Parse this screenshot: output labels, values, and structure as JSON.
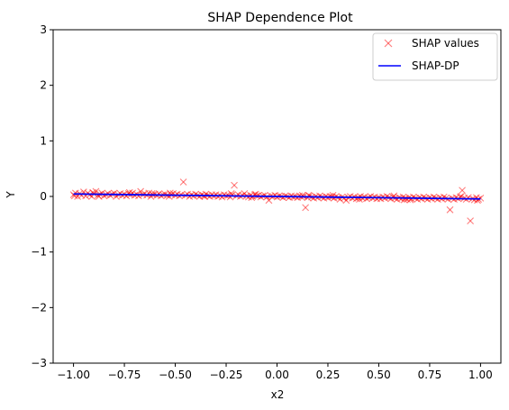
{
  "chart_data": {
    "type": "scatter",
    "title": "SHAP Dependence Plot",
    "xlabel": "x2",
    "ylabel": "Y",
    "xlim": [
      -1.1,
      1.1
    ],
    "ylim": [
      -3,
      3
    ],
    "xticks": [
      -1.0,
      -0.75,
      -0.5,
      -0.25,
      0.0,
      0.25,
      0.5,
      0.75,
      1.0
    ],
    "xtick_labels": [
      "−1.00",
      "−0.75",
      "−0.50",
      "−0.25",
      "0.00",
      "0.25",
      "0.50",
      "0.75",
      "1.00"
    ],
    "yticks": [
      -3,
      -2,
      -1,
      0,
      1,
      2,
      3
    ],
    "ytick_labels": [
      "−3",
      "−2",
      "−1",
      "0",
      "1",
      "2",
      "3"
    ],
    "grid": false,
    "legend_position": "top-right",
    "series": [
      {
        "name": "SHAP values",
        "kind": "scatter",
        "marker": "x",
        "color": "#ff0000",
        "opacity": 0.5,
        "points": [
          [
            -1.0,
            0.03
          ],
          [
            -0.99,
            0.06
          ],
          [
            -0.98,
            0.0
          ],
          [
            -0.97,
            0.05
          ],
          [
            -0.96,
            0.02
          ],
          [
            -0.95,
            0.08
          ],
          [
            -0.94,
            0.01
          ],
          [
            -0.93,
            0.06
          ],
          [
            -0.92,
            0.03
          ],
          [
            -0.91,
            0.0
          ],
          [
            -0.9,
            0.05
          ],
          [
            -0.89,
            0.09
          ],
          [
            -0.88,
            0.02
          ],
          [
            -0.87,
            0.04
          ],
          [
            -0.86,
            0.06
          ],
          [
            -0.85,
            0.01
          ],
          [
            -0.84,
            0.03
          ],
          [
            -0.83,
            0.05
          ],
          [
            -0.82,
            0.02
          ],
          [
            -0.81,
            0.04
          ],
          [
            -0.8,
            0.06
          ],
          [
            -0.79,
            0.0
          ],
          [
            -0.78,
            0.03
          ],
          [
            -0.77,
            0.05
          ],
          [
            -0.76,
            0.02
          ],
          [
            -0.75,
            0.04
          ],
          [
            -0.74,
            0.01
          ],
          [
            -0.73,
            0.05
          ],
          [
            -0.72,
            0.03
          ],
          [
            -0.71,
            0.06
          ],
          [
            -0.7,
            0.02
          ],
          [
            -0.69,
            0.04
          ],
          [
            -0.68,
            0.01
          ],
          [
            -0.67,
            0.09
          ],
          [
            -0.66,
            0.03
          ],
          [
            -0.65,
            0.05
          ],
          [
            -0.64,
            0.02
          ],
          [
            -0.63,
            0.06
          ],
          [
            -0.62,
            0.0
          ],
          [
            -0.61,
            0.03
          ],
          [
            -0.6,
            0.04
          ],
          [
            -0.59,
            0.02
          ],
          [
            -0.58,
            0.05
          ],
          [
            -0.57,
            0.01
          ],
          [
            -0.56,
            0.03
          ],
          [
            -0.55,
            0.04
          ],
          [
            -0.54,
            0.02
          ],
          [
            -0.53,
            0.0
          ],
          [
            -0.52,
            0.03
          ],
          [
            -0.51,
            0.05
          ],
          [
            -0.5,
            0.02
          ],
          [
            -0.49,
            0.04
          ],
          [
            -0.48,
            0.01
          ],
          [
            -0.47,
            0.03
          ],
          [
            -0.46,
            0.26
          ],
          [
            -0.45,
            0.02
          ],
          [
            -0.44,
            0.04
          ],
          [
            -0.43,
            0.0
          ],
          [
            -0.42,
            0.03
          ],
          [
            -0.41,
            0.01
          ],
          [
            -0.4,
            0.04
          ],
          [
            -0.39,
            0.02
          ],
          [
            -0.38,
            0.0
          ],
          [
            -0.37,
            0.03
          ],
          [
            -0.36,
            0.01
          ],
          [
            -0.35,
            0.04
          ],
          [
            -0.34,
            0.02
          ],
          [
            -0.33,
            0.0
          ],
          [
            -0.32,
            0.03
          ],
          [
            -0.31,
            0.01
          ],
          [
            -0.3,
            0.03
          ],
          [
            -0.29,
            0.0
          ],
          [
            -0.28,
            0.02
          ],
          [
            -0.27,
            -0.01
          ],
          [
            -0.26,
            0.03
          ],
          [
            -0.25,
            0.01
          ],
          [
            -0.24,
            0.02
          ],
          [
            -0.23,
            -0.01
          ],
          [
            -0.22,
            0.03
          ],
          [
            -0.21,
            0.2
          ],
          [
            -0.2,
            0.01
          ],
          [
            -0.19,
            0.03
          ],
          [
            -0.18,
            0.0
          ],
          [
            -0.17,
            0.02
          ],
          [
            -0.16,
            0.05
          ],
          [
            -0.15,
            0.01
          ],
          [
            -0.14,
            -0.01
          ],
          [
            -0.13,
            0.02
          ],
          [
            -0.12,
            0.0
          ],
          [
            -0.11,
            0.03
          ],
          [
            -0.1,
            0.01
          ],
          [
            -0.09,
            0.02
          ],
          [
            -0.08,
            -0.01
          ],
          [
            -0.07,
            0.01
          ],
          [
            -0.06,
            0.02
          ],
          [
            -0.05,
            -0.01
          ],
          [
            -0.04,
            -0.07
          ],
          [
            -0.03,
            0.01
          ],
          [
            -0.02,
            0.0
          ],
          [
            -0.01,
            0.02
          ],
          [
            0.0,
            -0.01
          ],
          [
            0.01,
            0.01
          ],
          [
            0.02,
            0.0
          ],
          [
            0.03,
            -0.02
          ],
          [
            0.04,
            0.01
          ],
          [
            0.05,
            0.0
          ],
          [
            0.06,
            -0.02
          ],
          [
            0.07,
            0.01
          ],
          [
            0.08,
            -0.01
          ],
          [
            0.09,
            0.0
          ],
          [
            0.1,
            -0.02
          ],
          [
            0.11,
            0.01
          ],
          [
            0.12,
            -0.01
          ],
          [
            0.13,
            0.0
          ],
          [
            0.14,
            -0.2
          ],
          [
            0.15,
            -0.02
          ],
          [
            0.16,
            0.01
          ],
          [
            0.17,
            -0.01
          ],
          [
            0.18,
            -0.03
          ],
          [
            0.19,
            0.0
          ],
          [
            0.2,
            -0.02
          ],
          [
            0.21,
            0.01
          ],
          [
            0.22,
            -0.01
          ],
          [
            0.23,
            -0.03
          ],
          [
            0.24,
            0.0
          ],
          [
            0.25,
            -0.02
          ],
          [
            0.26,
            0.0
          ],
          [
            0.27,
            -0.01
          ],
          [
            0.28,
            -0.03
          ],
          [
            0.29,
            0.0
          ],
          [
            0.3,
            -0.02
          ],
          [
            0.31,
            -0.05
          ],
          [
            0.32,
            -0.01
          ],
          [
            0.33,
            -0.03
          ],
          [
            0.34,
            -0.07
          ],
          [
            0.35,
            -0.02
          ],
          [
            0.36,
            0.0
          ],
          [
            0.37,
            -0.03
          ],
          [
            0.38,
            -0.01
          ],
          [
            0.39,
            -0.04
          ],
          [
            0.4,
            -0.02
          ],
          [
            0.41,
            0.0
          ],
          [
            0.42,
            -0.03
          ],
          [
            0.43,
            -0.01
          ],
          [
            0.44,
            -0.04
          ],
          [
            0.45,
            -0.02
          ],
          [
            0.46,
            0.0
          ],
          [
            0.47,
            -0.03
          ],
          [
            0.48,
            -0.01
          ],
          [
            0.49,
            -0.04
          ],
          [
            0.5,
            -0.02
          ],
          [
            0.51,
            -0.04
          ],
          [
            0.52,
            -0.01
          ],
          [
            0.53,
            -0.03
          ],
          [
            0.54,
            0.0
          ],
          [
            0.55,
            -0.02
          ],
          [
            0.56,
            -0.04
          ],
          [
            0.57,
            -0.01
          ],
          [
            0.58,
            -0.03
          ],
          [
            0.59,
            -0.05
          ],
          [
            0.6,
            -0.02
          ],
          [
            0.61,
            -0.04
          ],
          [
            0.62,
            -0.01
          ],
          [
            0.63,
            -0.03
          ],
          [
            0.64,
            -0.05
          ],
          [
            0.65,
            -0.02
          ],
          [
            0.66,
            -0.04
          ],
          [
            0.67,
            -0.01
          ],
          [
            0.68,
            -0.03
          ],
          [
            0.69,
            -0.05
          ],
          [
            0.7,
            -0.02
          ],
          [
            0.71,
            -0.04
          ],
          [
            0.72,
            -0.01
          ],
          [
            0.73,
            -0.03
          ],
          [
            0.74,
            -0.05
          ],
          [
            0.75,
            -0.02
          ],
          [
            0.76,
            -0.04
          ],
          [
            0.77,
            -0.01
          ],
          [
            0.78,
            -0.03
          ],
          [
            0.79,
            -0.05
          ],
          [
            0.8,
            -0.02
          ],
          [
            0.81,
            -0.04
          ],
          [
            0.82,
            -0.01
          ],
          [
            0.83,
            -0.03
          ],
          [
            0.84,
            -0.05
          ],
          [
            0.85,
            -0.24
          ],
          [
            0.86,
            -0.03
          ],
          [
            0.87,
            -0.05
          ],
          [
            0.88,
            -0.02
          ],
          [
            0.89,
            -0.04
          ],
          [
            0.9,
            -0.01
          ],
          [
            0.91,
            0.11
          ],
          [
            0.92,
            -0.03
          ],
          [
            0.93,
            -0.05
          ],
          [
            0.94,
            -0.02
          ],
          [
            0.95,
            -0.44
          ],
          [
            0.96,
            -0.04
          ],
          [
            0.97,
            -0.06
          ],
          [
            0.98,
            -0.02
          ],
          [
            0.99,
            -0.05
          ],
          [
            1.0,
            -0.03
          ],
          [
            -0.995,
            0.01
          ],
          [
            -0.905,
            0.07
          ],
          [
            -0.615,
            0.05
          ],
          [
            -0.355,
            0.0
          ],
          [
            -0.105,
            0.04
          ],
          [
            0.155,
            0.02
          ],
          [
            0.405,
            -0.05
          ],
          [
            0.655,
            -0.06
          ],
          [
            0.905,
            0.0
          ],
          [
            -0.875,
            0.0
          ],
          [
            -0.525,
            0.06
          ],
          [
            -0.125,
            -0.02
          ],
          [
            0.275,
            0.02
          ],
          [
            0.625,
            -0.06
          ],
          [
            0.985,
            -0.07
          ],
          [
            -0.725,
            0.07
          ],
          [
            -0.225,
            0.05
          ],
          [
            0.125,
            0.02
          ],
          [
            0.575,
            0.01
          ]
        ]
      },
      {
        "name": "SHAP-DP",
        "kind": "line",
        "color": "#0000ff",
        "x": [
          -1.0,
          1.0
        ],
        "y": [
          0.045,
          -0.045
        ]
      }
    ]
  }
}
